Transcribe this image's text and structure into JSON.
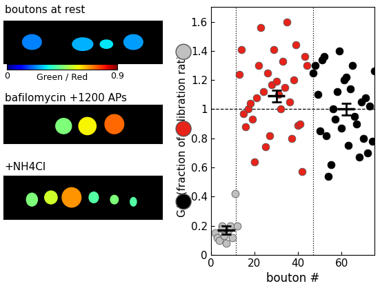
{
  "chart_data": [
    {
      "type": "image",
      "panels": [
        {
          "label": "boutons at rest",
          "color": "#c0c0c0"
        },
        {
          "label": "bafilomycin +1200 APs",
          "color": "#e8231a"
        },
        {
          "label": "+NH4Cl",
          "color": "#000000"
        }
      ],
      "colorbar": {
        "label": "Green / Red",
        "range": [
          0,
          0.9
        ],
        "ticks": [
          0,
          0.9
        ]
      }
    },
    {
      "type": "scatter",
      "x_label": "bouton #",
      "y_label": "G/R (fraction of calibration ratio)",
      "xlim": [
        0,
        75
      ],
      "xticks": [
        0,
        20,
        40,
        60
      ],
      "ylim": [
        0,
        1.7
      ],
      "yticks": [
        0,
        0.2,
        0.4,
        0.6,
        0.8,
        1,
        1.2,
        1.4,
        1.6
      ],
      "reference_lines": {
        "x": [
          11.5,
          47
        ],
        "y": [
          1
        ]
      },
      "series": [
        {
          "color": "#c0c0c0",
          "x": [
            2,
            3,
            4,
            5,
            6,
            7,
            8,
            9,
            10,
            11,
            12,
            5
          ],
          "values": [
            0.15,
            0.12,
            0.1,
            0.2,
            0.13,
            0.08,
            0.17,
            0.2,
            0.12,
            0.42,
            0.2,
            0.18
          ],
          "summary": {
            "x": 7,
            "value": 0.17,
            "error": 0.03
          }
        },
        {
          "color": "#e8231a",
          "x": [
            13,
            14,
            15,
            16,
            17,
            18,
            19,
            20,
            21,
            22,
            23,
            24,
            25,
            26,
            27,
            28,
            29,
            30,
            31,
            32,
            33,
            34,
            35,
            36,
            37,
            38,
            39,
            40,
            41,
            42,
            43,
            44
          ],
          "values": [
            1.24,
            1.41,
            0.97,
            0.88,
            1.0,
            1.04,
            0.93,
            0.64,
            1.08,
            1.3,
            1.56,
            1.12,
            0.74,
            1.25,
            0.82,
            1.17,
            1.41,
            1.19,
            1.1,
            1.0,
            1.33,
            1.15,
            1.6,
            1.05,
            0.8,
            1.2,
            1.44,
            0.89,
            0.9,
            0.57,
            1.36,
            1.3
          ],
          "summary": {
            "x": 30,
            "value": 1.09,
            "error": 0.04
          }
        },
        {
          "color": "#000000",
          "x": [
            47,
            48,
            49,
            50,
            51,
            52,
            53,
            54,
            55,
            56,
            57,
            58,
            59,
            60,
            61,
            62,
            63,
            64,
            65,
            66,
            67,
            68,
            69,
            70,
            71,
            72,
            73,
            74,
            75
          ],
          "values": [
            1.25,
            1.3,
            1.1,
            0.85,
            1.34,
            1.36,
            0.82,
            0.54,
            0.62,
            1.0,
            0.93,
            1.12,
            1.4,
            0.87,
            1.2,
            1.22,
            0.75,
            1.14,
            1.3,
            0.95,
            0.9,
            0.67,
            1.05,
            0.8,
            1.08,
            0.7,
            1.02,
            0.78,
            1.26
          ],
          "summary": {
            "x": 62,
            "value": 1.0,
            "error": 0.04
          }
        }
      ]
    }
  ]
}
